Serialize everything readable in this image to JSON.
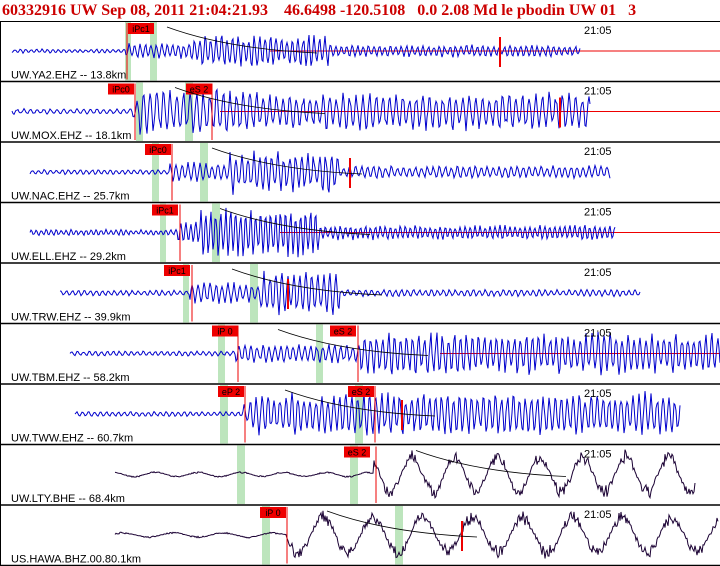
{
  "header": {
    "text": "60332916 UW Sep 08, 2011 21:04:21.93    46.6498 -120.5108   0.0 2.08 Md le pbodin UW 01   3"
  },
  "colors": {
    "header_text": "#cc0000",
    "pick_red": "#ee0000",
    "seismic_blue": "#0000cc",
    "long_period_black": "#1a0033",
    "pick_window_green": "#bde5bd",
    "panel_border": "#000000"
  },
  "traces": [
    {
      "station": "UW.YA2.EHZ -- 13.8km",
      "time": "21:05",
      "picks": [
        "iPc1"
      ],
      "trace_color": "blue"
    },
    {
      "station": "UW.MOX.EHZ -- 18.1km",
      "time": "21:05",
      "picks": [
        "iPc0",
        "eS 2"
      ],
      "trace_color": "blue"
    },
    {
      "station": "UW.NAC.EHZ -- 25.7km",
      "time": "21:05",
      "picks": [
        "iPc0"
      ],
      "trace_color": "blue"
    },
    {
      "station": "UW.ELL.EHZ -- 29.2km",
      "time": "21:05",
      "picks": [
        "iPc1"
      ],
      "trace_color": "blue"
    },
    {
      "station": "UW.TRW.EHZ -- 39.9km",
      "time": "21:05",
      "picks": [
        "iPc1"
      ],
      "trace_color": "blue"
    },
    {
      "station": "UW.TBM.EHZ -- 58.2km",
      "time": "21:05",
      "picks": [
        "iP 0",
        "eS 2"
      ],
      "trace_color": "blue"
    },
    {
      "station": "UW.TWW.EHZ -- 60.7km",
      "time": "21:05",
      "picks": [
        "eP 2",
        "eS 2"
      ],
      "trace_color": "blue"
    },
    {
      "station": "UW.LTY.BHE -- 68.4km",
      "time": "21:05",
      "picks": [
        "eS 2"
      ],
      "trace_color": "black"
    },
    {
      "station": "US.HAWA.BHZ.00.80.1km",
      "time": "21:05",
      "picks": [
        "iP 0"
      ],
      "trace_color": "black"
    }
  ]
}
